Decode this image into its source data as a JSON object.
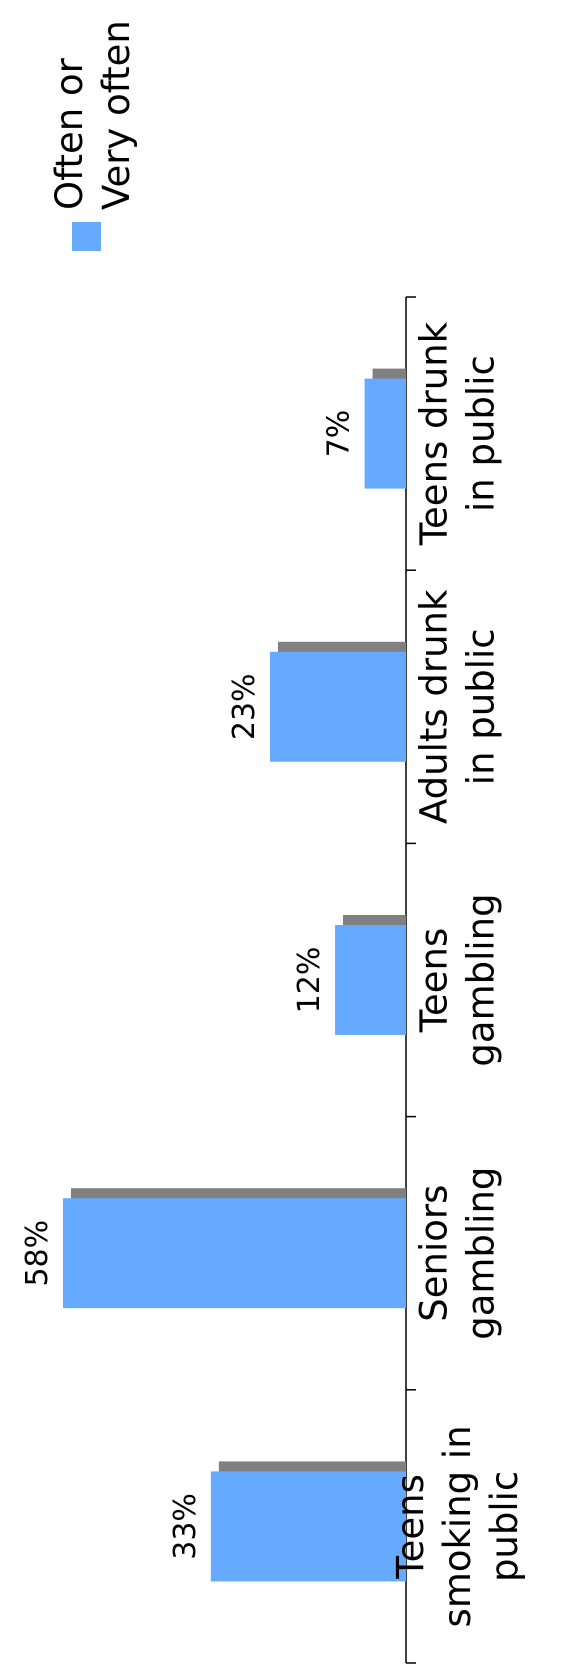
{
  "chart_data": {
    "type": "bar",
    "orientation": "rotated",
    "categories": [
      "Teens smoking in public",
      "Seniors gambling",
      "Teens gambling",
      "Adults drunk in public",
      "Teens drunk in public"
    ],
    "category_lines": [
      [
        "Teens",
        "smoking in",
        "public"
      ],
      [
        "Seniors",
        "gambling"
      ],
      [
        "Teens",
        "gambling"
      ],
      [
        "Adults drunk",
        "in public"
      ],
      [
        "Teens drunk",
        "in public"
      ]
    ],
    "series": [
      {
        "name": "Often or Very often",
        "values": [
          33,
          58,
          12,
          23,
          7
        ]
      }
    ],
    "value_labels": [
      "33%",
      "58%",
      "12%",
      "23%",
      "7%"
    ],
    "ylim": [
      0,
      60
    ],
    "legend": {
      "lines": [
        "Often or",
        "Very often"
      ],
      "placement": "top-right"
    },
    "colors": {
      "bar": "#66aaff",
      "shadow": "#808080",
      "axis": "#000000"
    },
    "grid": false
  }
}
